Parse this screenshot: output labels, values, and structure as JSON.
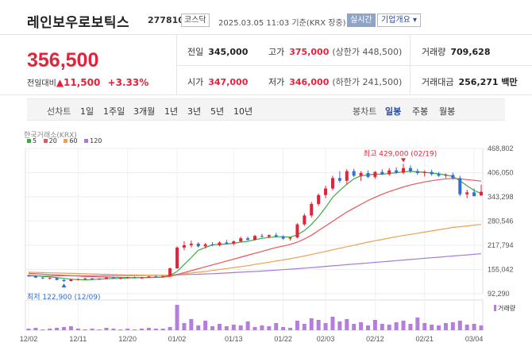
{
  "header": {
    "title": "레인보우로보틱스",
    "code": "277810",
    "market": "코스닥",
    "timestamp": "2025.03.05 11:03 기준(KRX 장중)",
    "live_button": "실시간",
    "info_button": "기업개요 ▾"
  },
  "price": {
    "current": "356,500",
    "change_label": "전일대비",
    "change_arrow": "▲",
    "change": "11,500",
    "change_pct": "+3.33%"
  },
  "stats": {
    "prev_label": "전일",
    "prev": "345,000",
    "high_label": "고가",
    "high": "375,000",
    "upper_limit": "(상한가 448,500)",
    "volume_label": "거래량",
    "volume": "709,628",
    "open_label": "시가",
    "open": "347,000",
    "low_label": "저가",
    "low": "346,000",
    "lower_limit": "(하한가 241,500)",
    "amount_label": "거래대금",
    "amount": "256,271 백만"
  },
  "periods": {
    "line_label": "선차트",
    "line_items": [
      "1일",
      "1주일",
      "3개월",
      "1년",
      "3년",
      "5년",
      "10년"
    ],
    "candle_label": "봉차트",
    "candle_items": [
      "일봉",
      "주봉",
      "월봉"
    ],
    "active_candle": "일봉"
  },
  "chart_data": {
    "type": "candlestick",
    "source": "한국거래소(KRX)",
    "ma_legend": [
      {
        "name": "5",
        "color": "#3ea93e"
      },
      {
        "name": "20",
        "color": "#e8555b"
      },
      {
        "name": "60",
        "color": "#f0a050"
      },
      {
        "name": "120",
        "color": "#a87ad8"
      }
    ],
    "y_ticks": [
      "468,802",
      "406,050",
      "343,298",
      "280,546",
      "217,794",
      "155,042",
      "92,290"
    ],
    "y_tick_values": [
      468802,
      406050,
      343298,
      280546,
      217794,
      155042,
      92290
    ],
    "ylim": [
      92290,
      468802
    ],
    "x_ticks": [
      "12/02",
      "12/11",
      "12/20",
      "01/02",
      "01/13",
      "01/22",
      "02/03",
      "02/12",
      "02/21",
      "03/04"
    ],
    "x_tick_index": [
      0,
      7,
      14,
      21,
      29,
      36,
      42,
      49,
      56,
      63
    ],
    "max_label": "최고 429,000 (02/19)",
    "min_label": "최저 122,900 (12/09)",
    "max_value": 429000,
    "min_value": 122900,
    "max_index": 53,
    "min_index": 5,
    "volume_label": "거래량",
    "candles": [
      [
        140000,
        142000,
        136000,
        138000
      ],
      [
        138000,
        140000,
        133000,
        134000
      ],
      [
        134000,
        136000,
        130000,
        132000
      ],
      [
        132000,
        135000,
        129000,
        133000
      ],
      [
        133000,
        134000,
        127000,
        128000
      ],
      [
        128000,
        130000,
        122900,
        125000
      ],
      [
        125000,
        131000,
        124000,
        129000
      ],
      [
        129000,
        132000,
        127000,
        130000
      ],
      [
        130000,
        134000,
        128000,
        132000
      ],
      [
        132000,
        133000,
        128000,
        129000
      ],
      [
        129000,
        133000,
        128000,
        131000
      ],
      [
        131000,
        135000,
        130000,
        134000
      ],
      [
        134000,
        136000,
        131000,
        132000
      ],
      [
        132000,
        135000,
        130000,
        133000
      ],
      [
        133000,
        136000,
        131000,
        135000
      ],
      [
        135000,
        137000,
        132000,
        133000
      ],
      [
        133000,
        136000,
        131000,
        134000
      ],
      [
        134000,
        138000,
        133000,
        137000
      ],
      [
        137000,
        140000,
        134000,
        136000
      ],
      [
        136000,
        139000,
        134000,
        138000
      ],
      [
        138000,
        160000,
        137000,
        158000
      ],
      [
        158000,
        215000,
        157000,
        212000
      ],
      [
        212000,
        228000,
        205000,
        218000
      ],
      [
        218000,
        230000,
        212000,
        222000
      ],
      [
        222000,
        226000,
        212000,
        215000
      ],
      [
        215000,
        224000,
        210000,
        220000
      ],
      [
        220000,
        226000,
        215000,
        218000
      ],
      [
        218000,
        228000,
        215000,
        225000
      ],
      [
        225000,
        232000,
        220000,
        222000
      ],
      [
        222000,
        230000,
        218000,
        228000
      ],
      [
        228000,
        240000,
        225000,
        236000
      ],
      [
        236000,
        240000,
        230000,
        232000
      ],
      [
        232000,
        245000,
        230000,
        242000
      ],
      [
        242000,
        248000,
        238000,
        240000
      ],
      [
        240000,
        246000,
        236000,
        244000
      ],
      [
        244000,
        250000,
        238000,
        240000
      ],
      [
        240000,
        244000,
        232000,
        235000
      ],
      [
        235000,
        240000,
        230000,
        238000
      ],
      [
        238000,
        275000,
        236000,
        272000
      ],
      [
        272000,
        300000,
        268000,
        295000
      ],
      [
        295000,
        330000,
        290000,
        325000
      ],
      [
        325000,
        352000,
        320000,
        348000
      ],
      [
        348000,
        372000,
        340000,
        365000
      ],
      [
        365000,
        398000,
        360000,
        392000
      ],
      [
        392000,
        410000,
        380000,
        385000
      ],
      [
        385000,
        415000,
        375000,
        410000
      ],
      [
        410000,
        416000,
        395000,
        398000
      ],
      [
        398000,
        410000,
        385000,
        405000
      ],
      [
        405000,
        412000,
        392000,
        395000
      ],
      [
        395000,
        410000,
        390000,
        408000
      ],
      [
        408000,
        415000,
        400000,
        402000
      ],
      [
        402000,
        418000,
        398000,
        412000
      ],
      [
        412000,
        420000,
        403000,
        406000
      ],
      [
        406000,
        429000,
        402000,
        418000
      ],
      [
        418000,
        425000,
        405000,
        410000
      ],
      [
        410000,
        416000,
        400000,
        405000
      ],
      [
        405000,
        412000,
        396000,
        408000
      ],
      [
        408000,
        414000,
        398000,
        402000
      ],
      [
        402000,
        408000,
        395000,
        398000
      ],
      [
        398000,
        404000,
        392000,
        400000
      ],
      [
        400000,
        406000,
        388000,
        392000
      ],
      [
        392000,
        398000,
        345000,
        350000
      ],
      [
        350000,
        362000,
        340000,
        355000
      ],
      [
        355000,
        365000,
        348000,
        345000
      ],
      [
        347000,
        375000,
        346000,
        356500
      ]
    ],
    "ma5": [
      140000,
      139000,
      137000,
      136000,
      134000,
      132000,
      130000,
      129000,
      128000,
      129000,
      130000,
      131000,
      131500,
      132000,
      133000,
      133500,
      134000,
      134500,
      135000,
      135500,
      140000,
      150000,
      168000,
      186000,
      205000,
      212000,
      219000,
      220000,
      221000,
      223000,
      226000,
      228000,
      232000,
      236000,
      238000,
      240000,
      240000,
      239000,
      245000,
      256000,
      272000,
      292000,
      316000,
      342000,
      360000,
      376000,
      390000,
      398000,
      400000,
      402000,
      402000,
      404000,
      406000,
      408000,
      410000,
      408000,
      407000,
      405000,
      403000,
      400000,
      396000,
      385000,
      372000,
      360000,
      352000
    ],
    "ma20": [
      145000,
      144000,
      143000,
      142000,
      141000,
      140000,
      139000,
      138000,
      137000,
      136500,
      136000,
      135500,
      135000,
      134500,
      134000,
      134000,
      134000,
      134200,
      134500,
      135000,
      137000,
      142000,
      147000,
      152000,
      157000,
      162000,
      167000,
      172000,
      177000,
      182000,
      187000,
      192000,
      197000,
      202000,
      207000,
      212000,
      216000,
      220000,
      226000,
      234000,
      244000,
      256000,
      268000,
      280000,
      292000,
      304000,
      314000,
      324000,
      334000,
      342000,
      350000,
      357000,
      363000,
      369000,
      374000,
      378000,
      382000,
      385000,
      388000,
      390000,
      391000,
      390000,
      388000,
      386000,
      384000
    ],
    "ma60": [
      148000,
      147500,
      147000,
      146500,
      146000,
      145500,
      145000,
      144500,
      144000,
      143500,
      143000,
      142500,
      142000,
      141500,
      141000,
      140800,
      140600,
      140400,
      140200,
      140000,
      141000,
      142500,
      144000,
      146000,
      148000,
      150000,
      152500,
      155000,
      157500,
      160000,
      162500,
      165000,
      168000,
      171000,
      174000,
      177000,
      180000,
      183000,
      186500,
      190000,
      194000,
      198000,
      202000,
      206000,
      210000,
      214000,
      218000,
      222000,
      226000,
      229500,
      233000,
      236500,
      240000,
      243000,
      246000,
      249000,
      252000,
      255000,
      258000,
      261000,
      264000,
      266000,
      268000,
      270000,
      272000
    ],
    "ma120": [
      138000,
      138100,
      138200,
      138300,
      138400,
      138500,
      138600,
      138700,
      138800,
      138900,
      139000,
      139100,
      139200,
      139300,
      139400,
      139500,
      139600,
      139800,
      140000,
      140200,
      140500,
      141000,
      141600,
      142200,
      142800,
      143500,
      144200,
      145000,
      146000,
      147000,
      148000,
      149000,
      150000,
      151000,
      152200,
      153400,
      154600,
      155800,
      157000,
      158500,
      160000,
      161500,
      163000,
      164500,
      166000,
      167500,
      169000,
      170500,
      172000,
      173500,
      175000,
      176500,
      178000,
      179500,
      181000,
      182500,
      184000,
      185500,
      187000,
      188500,
      190000,
      191500,
      193000,
      194500,
      196000
    ],
    "volume_heights": [
      2,
      3,
      1,
      2,
      3,
      4,
      5,
      2,
      1,
      2,
      1,
      3,
      2,
      1,
      2,
      1,
      2,
      3,
      2,
      2,
      4,
      32,
      9,
      14,
      6,
      12,
      5,
      8,
      5,
      7,
      6,
      11,
      4,
      6,
      5,
      9,
      4,
      3,
      12,
      8,
      15,
      13,
      9,
      17,
      11,
      14,
      8,
      10,
      6,
      13,
      8,
      7,
      10,
      12,
      8,
      16,
      9,
      7,
      6,
      9,
      10,
      12,
      7,
      8,
      6
    ]
  }
}
